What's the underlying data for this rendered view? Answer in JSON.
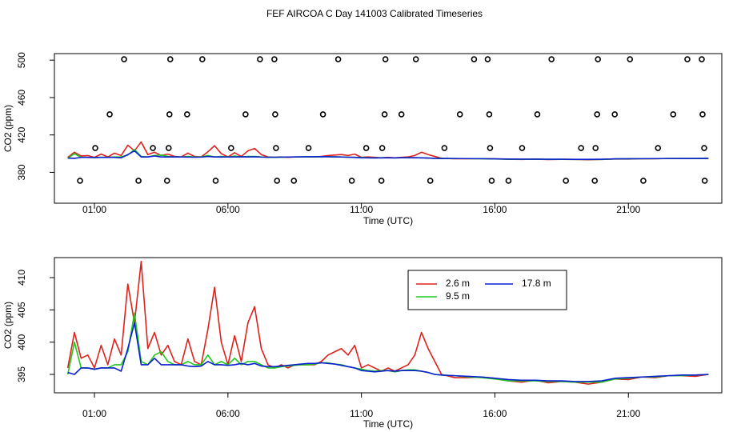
{
  "chart_data": [
    {
      "type": "line",
      "title": "FEF AIRCOA C  Day 141003  Calibrated Timeseries",
      "x_label": "Time (UTC)",
      "y_label": "CO2 (ppm)",
      "xlim": [
        -0.5,
        24.5
      ],
      "ylim": [
        347,
        507
      ],
      "xticks": [
        {
          "value": 1,
          "label": "01:00"
        },
        {
          "value": 6,
          "label": "06:00"
        },
        {
          "value": 11,
          "label": "11:00"
        },
        {
          "value": 16,
          "label": "16:00"
        },
        {
          "value": 21,
          "label": "21:00"
        }
      ],
      "yticks": [
        380,
        420,
        460,
        500
      ],
      "x": [
        0,
        0.25,
        0.5,
        0.75,
        1,
        1.25,
        1.5,
        1.75,
        2,
        2.25,
        2.5,
        2.75,
        3,
        3.25,
        3.5,
        3.75,
        4,
        4.25,
        4.5,
        4.75,
        5,
        5.25,
        5.5,
        5.75,
        6,
        6.25,
        6.5,
        6.75,
        7,
        7.25,
        7.5,
        7.75,
        8,
        8.25,
        8.5,
        8.75,
        9,
        9.25,
        9.5,
        9.75,
        10,
        10.25,
        10.5,
        10.75,
        11,
        11.25,
        11.5,
        11.75,
        12,
        12.25,
        12.5,
        12.75,
        13,
        13.25,
        13.5,
        13.75,
        14,
        14.5,
        15,
        15.5,
        16,
        16.5,
        17,
        17.5,
        18,
        18.5,
        19,
        19.5,
        20,
        20.5,
        21,
        21.5,
        22,
        22.5,
        23,
        23.5,
        24
      ],
      "series": [
        {
          "color": "#e0201b",
          "values": [
            396,
            401.5,
            397.5,
            398,
            396,
            399.5,
            396.5,
            400.5,
            398,
            409,
            403,
            412.5,
            399,
            401.5,
            398,
            399.5,
            397,
            396.5,
            400.5,
            397,
            396.5,
            402,
            408.5,
            400,
            396.5,
            401,
            397,
            403,
            405.5,
            399,
            396.5,
            396,
            396.5,
            396,
            396.5,
            396.5,
            396.5,
            396.5,
            397,
            398,
            398.5,
            399,
            398,
            399.5,
            396,
            396.5,
            396,
            395.5,
            396,
            395.5,
            396,
            396.5,
            398,
            401.5,
            399,
            397,
            395,
            394.5,
            394.5,
            394.6,
            394.4,
            394,
            393.8,
            394.1,
            393.7,
            393.9,
            393.8,
            393.5,
            393.8,
            394.3,
            394.2,
            394.6,
            394.5,
            394.8,
            394.8,
            394.7,
            395
          ]
        },
        {
          "color": "#1ec81e",
          "values": [
            395,
            400,
            396,
            396,
            395.8,
            396,
            396,
            396.5,
            396.5,
            398.5,
            404.5,
            397,
            396.5,
            398,
            398.5,
            397,
            396.5,
            396.5,
            397,
            396.5,
            396.5,
            398,
            396.5,
            397,
            396.5,
            397.5,
            396.5,
            397,
            397,
            396.5,
            396,
            396,
            396.2,
            396.3,
            396.4,
            396.5,
            396.5,
            396.6,
            396.8,
            396.8,
            396.6,
            396.5,
            396.2,
            396,
            395.8,
            395.6,
            395.5,
            395.6,
            395.6,
            395.4,
            395.6,
            395.7,
            395.7,
            395.5,
            395.3,
            395,
            394.9,
            394.8,
            394.6,
            394.5,
            394.3,
            394,
            394,
            394,
            393.9,
            393.9,
            393.8,
            393.8,
            393.8,
            394.3,
            394.4,
            394.6,
            394.6,
            394.8,
            394.8,
            394.9,
            395
          ]
        },
        {
          "color": "#0a1ed2",
          "values": [
            395.3,
            395,
            396,
            396,
            395.8,
            396,
            396,
            396,
            395.5,
            399,
            403,
            396.5,
            396.5,
            397.5,
            396.5,
            396.5,
            396.5,
            396.5,
            396.3,
            396.2,
            396.3,
            397,
            396.5,
            396.5,
            396.4,
            396.5,
            396.7,
            396.5,
            396.7,
            396.3,
            396.2,
            396.2,
            396.3,
            396.4,
            396.5,
            396.6,
            396.7,
            396.7,
            396.8,
            396.7,
            396.6,
            396.4,
            396.2,
            396,
            395.6,
            395.5,
            395.4,
            395.5,
            395.6,
            395.5,
            395.6,
            395.6,
            395.6,
            395.5,
            395.3,
            395,
            394.9,
            394.8,
            394.7,
            394.6,
            394.4,
            394.2,
            394.1,
            394.1,
            394,
            394,
            393.9,
            393.9,
            394,
            394.4,
            394.5,
            394.6,
            394.7,
            394.8,
            394.9,
            394.9,
            395
          ]
        }
      ],
      "points": {
        "color": "#000000",
        "x": [
          2.11,
          3.84,
          5.04,
          7.2,
          7.74,
          10.13,
          11.9,
          13.04,
          15.22,
          15.73,
          18.12,
          19.86,
          21.06,
          23.21,
          23.75,
          1.57,
          3.81,
          4.47,
          6.66,
          7.77,
          9.56,
          11.87,
          12.5,
          14.69,
          15.79,
          17.59,
          19.83,
          20.49,
          22.68,
          23.78,
          1.03,
          3.19,
          3.78,
          6.12,
          7.8,
          9.02,
          11.18,
          11.78,
          14.11,
          15.82,
          17.02,
          19.23,
          19.77,
          22.11,
          23.84,
          0.46,
          2.65,
          3.72,
          5.54,
          7.84,
          8.47,
          10.64,
          11.75,
          13.58,
          15.88,
          16.51,
          18.66,
          19.74,
          21.56,
          23.86
        ],
        "values": [
          501,
          501,
          501,
          501,
          501,
          501,
          501,
          501,
          501,
          501,
          501,
          501,
          501,
          501,
          501,
          442,
          442,
          442,
          442,
          442,
          442,
          442,
          442,
          442,
          442,
          442,
          442,
          442,
          442,
          442,
          406,
          406,
          406,
          406,
          406,
          406,
          406,
          406,
          406,
          406,
          406,
          406,
          406,
          406,
          406,
          371,
          371,
          371,
          371,
          371,
          371,
          371,
          371,
          371,
          371,
          371,
          371,
          371,
          371,
          371
        ]
      }
    },
    {
      "type": "line",
      "x_label": "Time (UTC)",
      "y_label": "CO2 (ppm)",
      "legend": "top",
      "xlim": [
        -0.5,
        24.5
      ],
      "ylim": [
        392.15,
        413.1
      ],
      "xticks": [
        {
          "value": 1,
          "label": "01:00"
        },
        {
          "value": 6,
          "label": "06:00"
        },
        {
          "value": 11,
          "label": "11:00"
        },
        {
          "value": 16,
          "label": "16:00"
        },
        {
          "value": 21,
          "label": "21:00"
        }
      ],
      "yticks": [
        395,
        400,
        405,
        410
      ],
      "x": [
        0,
        0.25,
        0.5,
        0.75,
        1,
        1.25,
        1.5,
        1.75,
        2,
        2.25,
        2.5,
        2.75,
        3,
        3.25,
        3.5,
        3.75,
        4,
        4.25,
        4.5,
        4.75,
        5,
        5.25,
        5.5,
        5.75,
        6,
        6.25,
        6.5,
        6.75,
        7,
        7.25,
        7.5,
        7.75,
        8,
        8.25,
        8.5,
        8.75,
        9,
        9.25,
        9.5,
        9.75,
        10,
        10.25,
        10.5,
        10.75,
        11,
        11.25,
        11.5,
        11.75,
        12,
        12.25,
        12.5,
        12.75,
        13,
        13.25,
        13.5,
        13.75,
        14,
        14.5,
        15,
        15.5,
        16,
        16.5,
        17,
        17.5,
        18,
        18.5,
        19,
        19.5,
        20,
        20.5,
        21,
        21.5,
        22,
        22.5,
        23,
        23.5,
        24
      ],
      "series": [
        {
          "name": "2.6 m",
          "color": "#e0201b",
          "values": [
            396,
            401.5,
            397.5,
            398,
            396,
            399.5,
            396.5,
            400.5,
            398,
            409,
            403,
            412.5,
            399,
            401.5,
            398,
            399.5,
            397,
            396.5,
            400.5,
            397,
            396.5,
            402,
            408.5,
            400,
            396.5,
            401,
            397,
            403,
            405.5,
            399,
            396.5,
            396,
            396.5,
            396,
            396.5,
            396.5,
            396.5,
            396.5,
            397,
            398,
            398.5,
            399,
            398,
            399.5,
            396,
            396.5,
            396,
            395.5,
            396,
            395.5,
            396,
            396.5,
            398,
            401.5,
            399,
            397,
            395,
            394.5,
            394.5,
            394.6,
            394.4,
            394,
            393.8,
            394.1,
            393.7,
            393.9,
            393.8,
            393.5,
            393.8,
            394.3,
            394.2,
            394.6,
            394.5,
            394.8,
            394.8,
            394.7,
            395
          ]
        },
        {
          "name": "9.5 m",
          "color": "#1ec81e",
          "values": [
            395,
            400,
            396,
            396,
            395.8,
            396,
            396,
            396.5,
            396.5,
            398.5,
            404.5,
            397,
            396.5,
            398,
            398.5,
            397,
            396.5,
            396.5,
            397,
            396.5,
            396.5,
            398,
            396.5,
            397,
            396.5,
            397.5,
            396.5,
            397,
            397,
            396.5,
            396,
            396,
            396.2,
            396.3,
            396.4,
            396.5,
            396.5,
            396.6,
            396.8,
            396.8,
            396.6,
            396.5,
            396.2,
            396,
            395.8,
            395.6,
            395.5,
            395.6,
            395.6,
            395.4,
            395.6,
            395.7,
            395.7,
            395.5,
            395.3,
            395,
            394.9,
            394.8,
            394.6,
            394.5,
            394.3,
            394,
            394,
            394,
            393.9,
            393.9,
            393.8,
            393.8,
            393.8,
            394.3,
            394.4,
            394.6,
            394.6,
            394.8,
            394.8,
            394.9,
            395
          ]
        },
        {
          "name": "17.8 m",
          "color": "#0a1ed2",
          "values": [
            395.3,
            395,
            396,
            396,
            395.8,
            396,
            396,
            396,
            395.5,
            399,
            403,
            396.5,
            396.5,
            397.5,
            396.5,
            396.5,
            396.5,
            396.5,
            396.3,
            396.2,
            396.3,
            397,
            396.5,
            396.5,
            396.4,
            396.5,
            396.7,
            396.5,
            396.7,
            396.3,
            396.2,
            396.2,
            396.3,
            396.4,
            396.5,
            396.6,
            396.7,
            396.7,
            396.8,
            396.7,
            396.6,
            396.4,
            396.2,
            396,
            395.6,
            395.5,
            395.4,
            395.5,
            395.6,
            395.5,
            395.6,
            395.6,
            395.6,
            395.5,
            395.3,
            395,
            394.9,
            394.8,
            394.7,
            394.6,
            394.4,
            394.2,
            394.1,
            394.1,
            394,
            394,
            393.9,
            393.9,
            394,
            394.4,
            394.5,
            394.6,
            394.7,
            394.8,
            394.9,
            394.9,
            395
          ]
        }
      ]
    }
  ]
}
